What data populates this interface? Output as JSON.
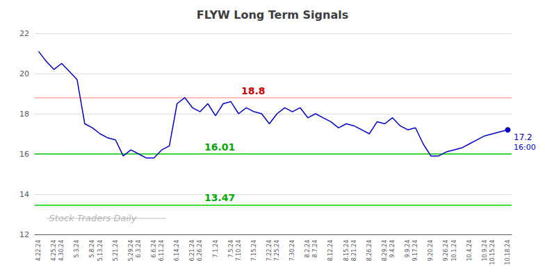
{
  "chart_data": {
    "type": "line",
    "title": "FLYW Long Term Signals",
    "categories": [
      "4.22.24",
      null,
      "4.25.24",
      "4.30.24",
      null,
      "5.3.24",
      null,
      "5.8.24",
      "5.13.24",
      null,
      "5.21.24",
      null,
      "5.29.24",
      "6.3.24",
      null,
      "6.6.24",
      "6.11.24",
      null,
      "6.14.24",
      null,
      "6.21.24",
      "6.26.24",
      null,
      "7.1.24",
      null,
      "7.5.24",
      "7.10.24",
      null,
      "7.15.24",
      null,
      "7.22.24",
      "7.25.24",
      null,
      "7.30.24",
      null,
      "8.2.24",
      "8.7.24",
      null,
      "8.12.24",
      null,
      "8.15.24",
      "8.21.24",
      null,
      "8.26.24",
      null,
      "8.29.24",
      "9.4.24",
      null,
      "9.9.24",
      "9.17.24",
      null,
      "9.20.24",
      null,
      "9.26.24",
      "10.1.24",
      null,
      "10.4.24",
      null,
      "10.9.24",
      "10.15.24",
      null,
      "10.18.24"
    ],
    "values": [
      21.1,
      20.6,
      20.2,
      20.5,
      20.1,
      19.7,
      17.5,
      17.3,
      17.0,
      16.8,
      16.7,
      15.9,
      16.2,
      16.0,
      15.8,
      15.8,
      16.2,
      16.4,
      18.5,
      18.8,
      18.3,
      18.1,
      18.5,
      17.9,
      18.5,
      18.6,
      18.0,
      18.3,
      18.1,
      18.0,
      17.5,
      18.0,
      18.3,
      18.1,
      18.3,
      17.8,
      18.0,
      17.8,
      17.6,
      17.3,
      17.5,
      17.4,
      17.2,
      17.0,
      17.6,
      17.5,
      17.8,
      17.4,
      17.2,
      17.3,
      16.5,
      15.9,
      15.9,
      16.1,
      16.2,
      16.3,
      16.5,
      16.7,
      16.9,
      17.0,
      17.1,
      17.2
    ],
    "color": "#0000cc",
    "marker": "circle",
    "ylim": [
      12,
      22
    ],
    "yticks": [
      12,
      14,
      16,
      18,
      20,
      22
    ],
    "grid": true,
    "hlines": [
      {
        "value": 18.8,
        "color": "#ffaaaa",
        "label": "18.8",
        "label_color": "#cc0000"
      },
      {
        "value": 16.01,
        "color": "#00cc00",
        "label": "16.01",
        "label_color": "#00aa00"
      },
      {
        "value": 13.47,
        "color": "#00cc00",
        "label": "13.47",
        "label_color": "#00aa00"
      }
    ],
    "annotations": [
      {
        "text": "16:00",
        "y": 16.01,
        "color": "#0000cc"
      },
      {
        "text": "17.2",
        "y": 17.2,
        "color": "#0000cc"
      }
    ],
    "watermark": {
      "text": "Stock Traders Daily",
      "color": "#aaaaaa"
    }
  }
}
